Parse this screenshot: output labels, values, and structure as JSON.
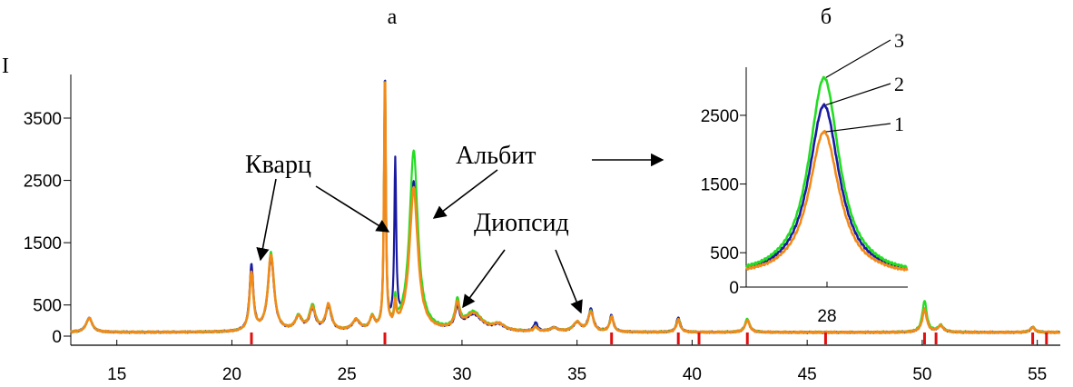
{
  "chart_data": [
    {
      "type": "line",
      "panel_label": "а",
      "ylabel": "I",
      "xlim": [
        13,
        56
      ],
      "ylim": [
        0,
        4200
      ],
      "x_ticks": [
        15,
        20,
        25,
        30,
        35,
        40,
        45,
        50,
        55
      ],
      "y_ticks": [
        0,
        500,
        1500,
        2500,
        3500
      ],
      "background": 60,
      "peaks": [
        {
          "x": 13.8,
          "h": [
            230,
            230,
            230
          ],
          "w": 0.16
        },
        {
          "x": 20.85,
          "h": [
            1050,
            920,
            940
          ],
          "w": 0.1
        },
        {
          "x": 21.7,
          "h": [
            1180,
            1260,
            1230
          ],
          "w": 0.16
        },
        {
          "x": 22.9,
          "h": [
            220,
            230,
            220
          ],
          "w": 0.18
        },
        {
          "x": 23.5,
          "h": [
            330,
            400,
            360
          ],
          "w": 0.16
        },
        {
          "x": 24.2,
          "h": [
            380,
            400,
            420
          ],
          "w": 0.15
        },
        {
          "x": 25.4,
          "h": [
            160,
            170,
            170
          ],
          "w": 0.2
        },
        {
          "x": 26.1,
          "h": [
            190,
            200,
            200
          ],
          "w": 0.12
        },
        {
          "x": 26.65,
          "h": [
            4100,
            4100,
            4100
          ],
          "w": 0.045
        },
        {
          "x": 27.1,
          "h": [
            2600,
            380,
            350
          ],
          "w": 0.05
        },
        {
          "x": 27.9,
          "h": [
            2400,
            2900,
            2300
          ],
          "w": 0.22
        },
        {
          "x": 29.8,
          "h": [
            320,
            430,
            390
          ],
          "w": 0.12
        },
        {
          "x": 30.5,
          "h": [
            260,
            300,
            280
          ],
          "w": 0.45
        },
        {
          "x": 31.6,
          "h": [
            90,
            100,
            100
          ],
          "w": 0.3
        },
        {
          "x": 33.2,
          "h": [
            140,
            70,
            70
          ],
          "w": 0.1
        },
        {
          "x": 34.0,
          "h": [
            60,
            60,
            60
          ],
          "w": 0.2
        },
        {
          "x": 35.0,
          "h": [
            140,
            150,
            150
          ],
          "w": 0.2
        },
        {
          "x": 35.6,
          "h": [
            360,
            330,
            320
          ],
          "w": 0.13
        },
        {
          "x": 36.5,
          "h": [
            270,
            250,
            240
          ],
          "w": 0.1
        },
        {
          "x": 39.4,
          "h": [
            240,
            220,
            200
          ],
          "w": 0.1
        },
        {
          "x": 42.4,
          "h": [
            200,
            220,
            190
          ],
          "w": 0.12
        },
        {
          "x": 50.1,
          "h": [
            380,
            500,
            360
          ],
          "w": 0.12
        },
        {
          "x": 50.8,
          "h": [
            100,
            110,
            100
          ],
          "w": 0.15
        },
        {
          "x": 54.8,
          "h": [
            80,
            90,
            80
          ],
          "w": 0.12
        }
      ],
      "series": [
        {
          "color": "#1a1aa0"
        },
        {
          "color": "#22dd22"
        },
        {
          "color": "#f28a1a"
        }
      ],
      "reference_marks_x": [
        20.85,
        26.65,
        36.5,
        39.4,
        40.3,
        42.4,
        45.8,
        50.1,
        50.6,
        54.8,
        55.4
      ],
      "reference_mark_color": "#e01010",
      "annotations": [
        {
          "text": "Кварц"
        },
        {
          "text": "Альбит"
        },
        {
          "text": "Диопсид"
        }
      ]
    },
    {
      "type": "line",
      "panel_label": "б",
      "xlim": [
        26.6,
        29.4
      ],
      "ylim": [
        0,
        3200
      ],
      "x_ticks": [
        28
      ],
      "y_ticks": [
        0,
        500,
        1500,
        2500
      ],
      "peak_x": 27.95,
      "background": 150,
      "series": [
        {
          "name": "1",
          "peak": 2260,
          "color": "#f28a1a"
        },
        {
          "name": "2",
          "peak": 2650,
          "color": "#1a1aa0"
        },
        {
          "name": "3",
          "peak": 3050,
          "color": "#22dd22"
        }
      ]
    }
  ]
}
